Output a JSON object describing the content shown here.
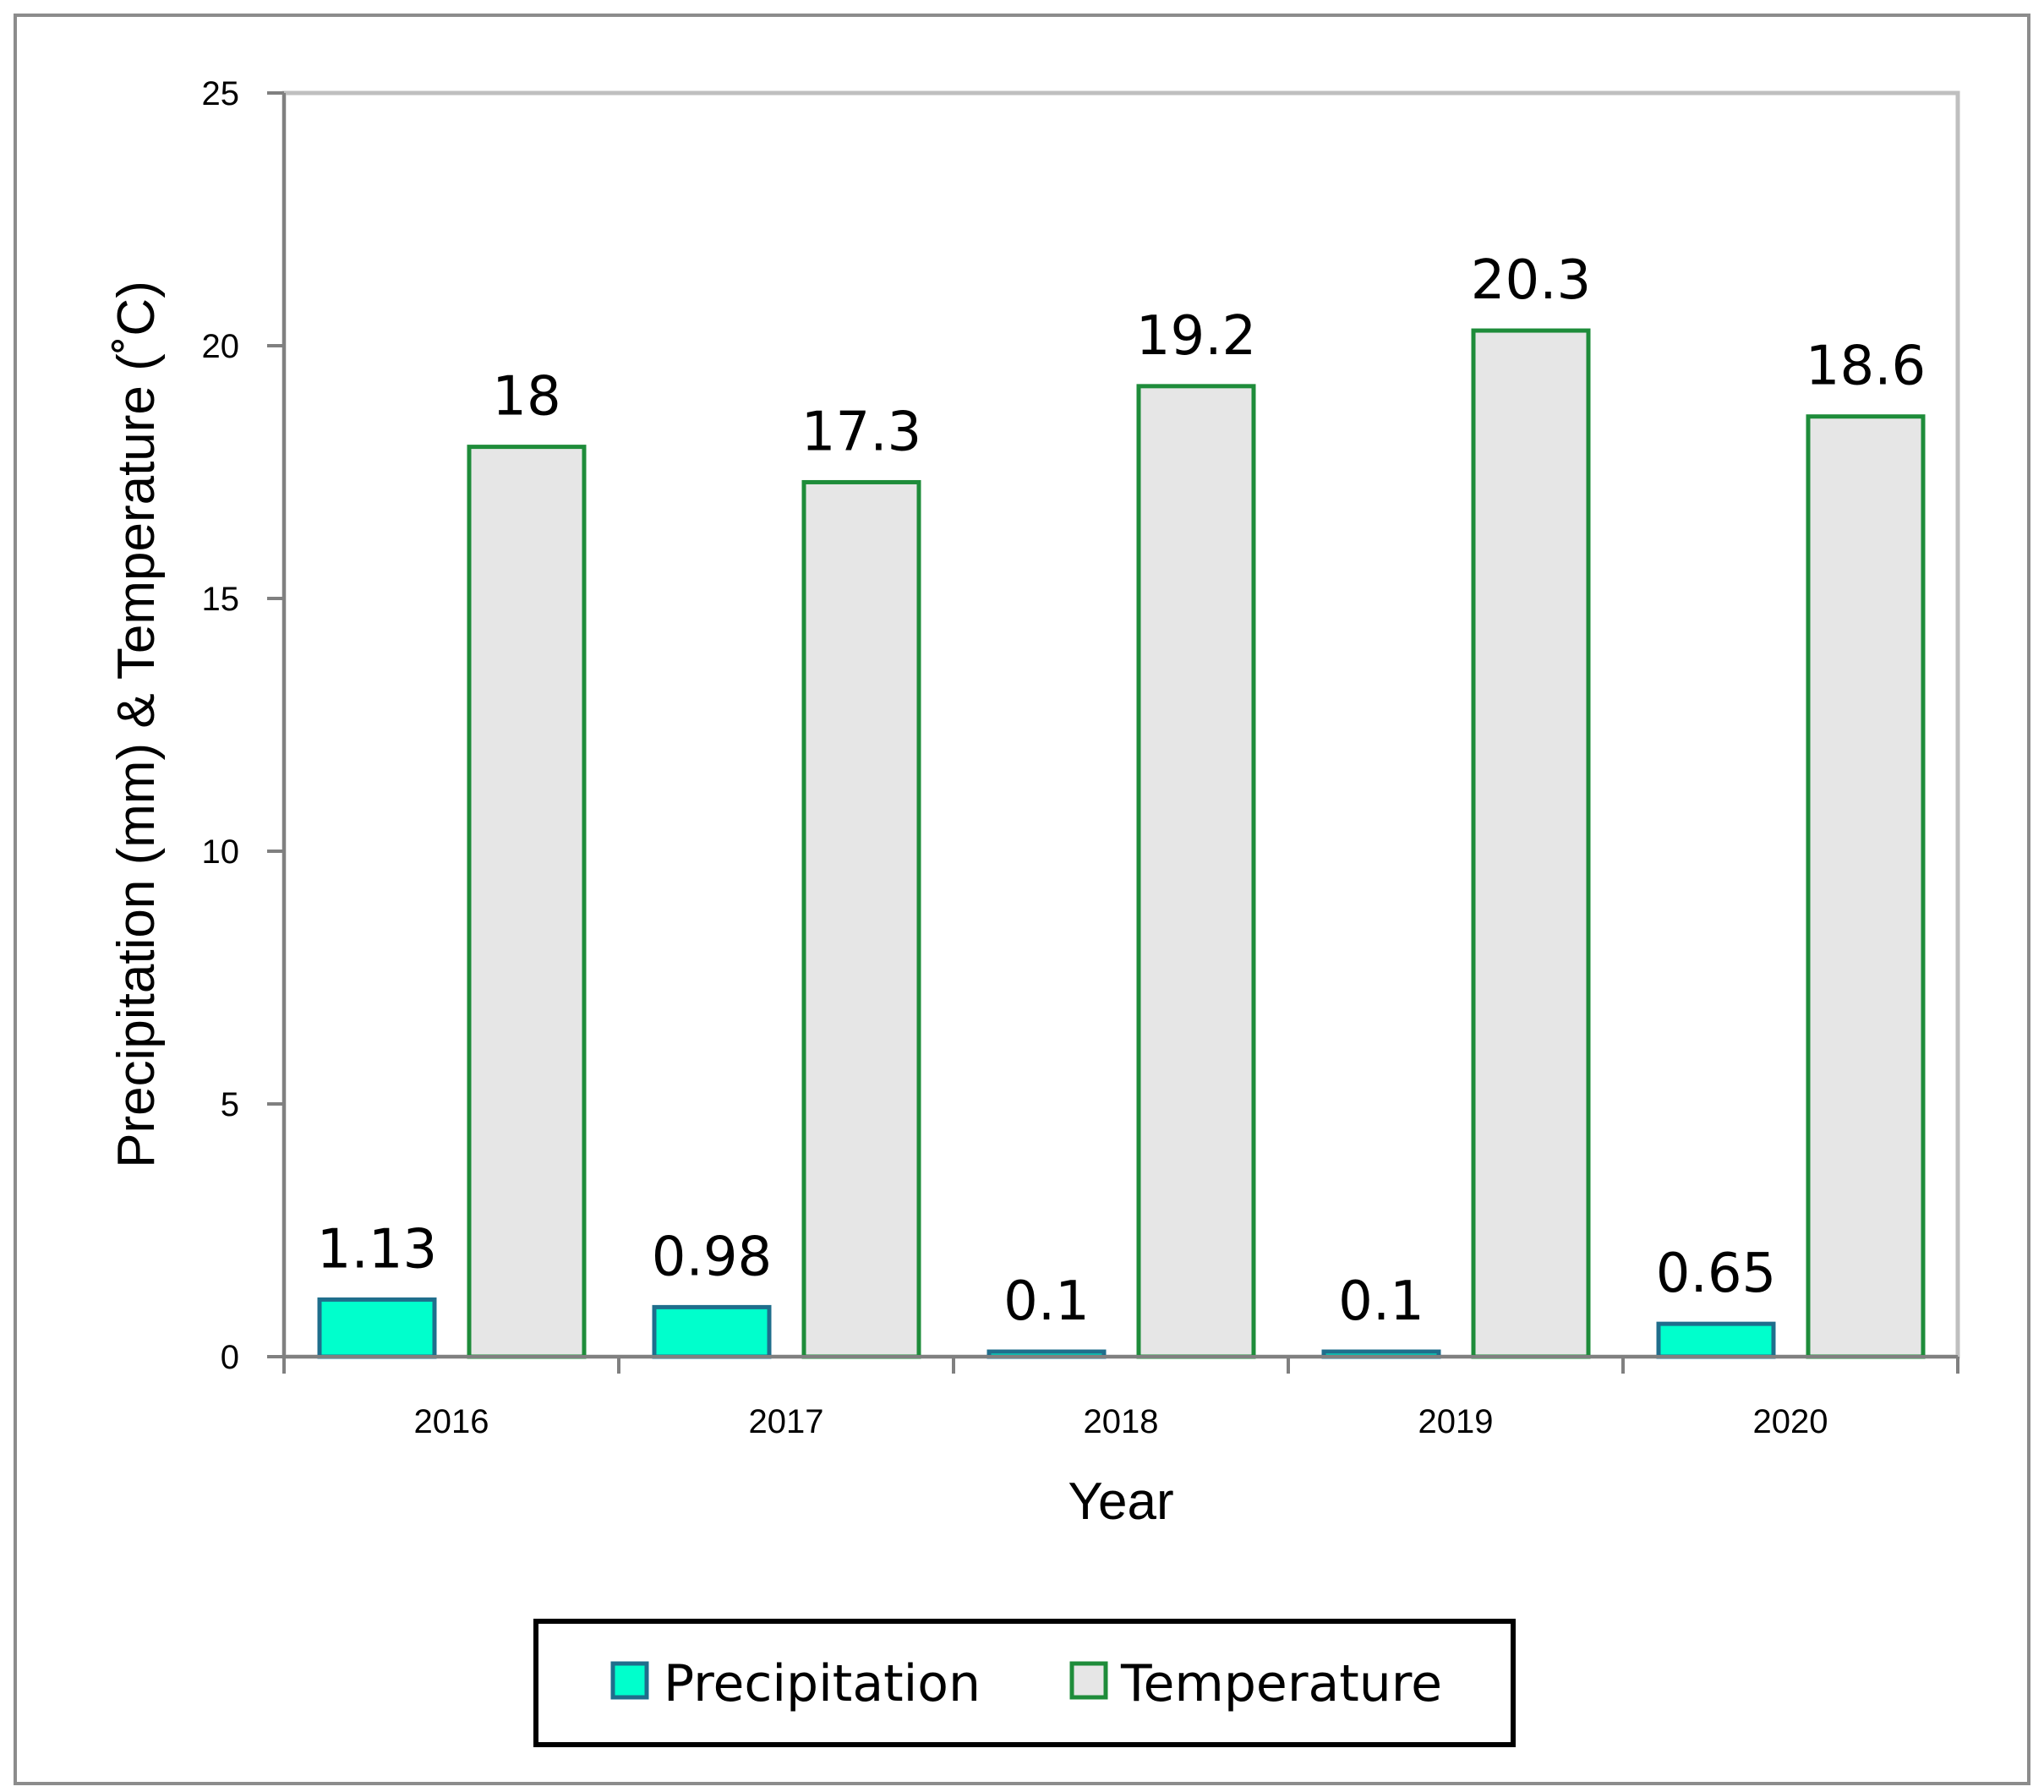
{
  "chart_data": {
    "type": "bar",
    "categories": [
      "2016",
      "2017",
      "2018",
      "2019",
      "2020"
    ],
    "series": [
      {
        "name": "Precipitation",
        "values": [
          1.13,
          0.98,
          0.1,
          0.1,
          0.65
        ],
        "labels": [
          "1.13",
          "0.98",
          "0.1",
          "0.1",
          "0.65"
        ],
        "fill": "#00FFCC",
        "stroke": "#1F6E8C"
      },
      {
        "name": "Temperature",
        "values": [
          18,
          17.3,
          19.2,
          20.3,
          18.6
        ],
        "labels": [
          "18",
          "17.3",
          "19.2",
          "20.3",
          "18.6"
        ],
        "fill": "#E6E6E6",
        "stroke": "#1E8C3A"
      }
    ],
    "xlabel": "Year",
    "ylabel": "Precipitation (mm) & Temperature (˚C)",
    "ylim": [
      0,
      25
    ],
    "yticks": [
      "0",
      "5",
      "10",
      "15",
      "20",
      "25"
    ],
    "grid": false,
    "legend_position": "bottom-center"
  }
}
